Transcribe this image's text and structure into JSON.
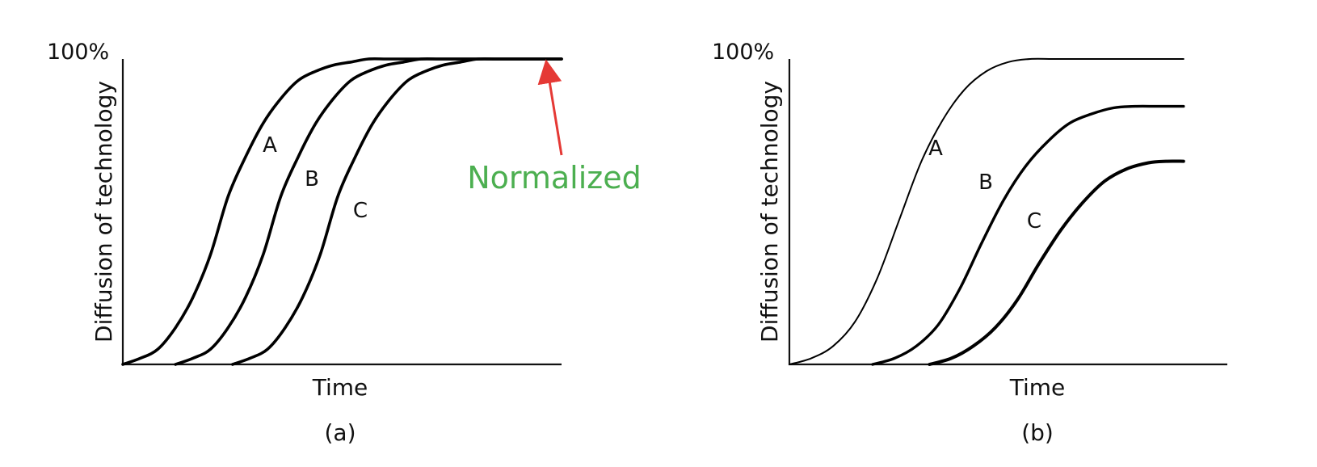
{
  "colors": {
    "curve": "#000000",
    "annotation_text": "#4caf50",
    "annotation_arrow": "#e53935"
  },
  "chart_data": [
    {
      "type": "line",
      "panel_label": "(a)",
      "xlabel": "Time",
      "ylabel": "Diffusion of technology",
      "y_tick_label": "100%",
      "ylim": [
        0,
        100
      ],
      "x_ticks_shown": false,
      "grid": false,
      "annotation": {
        "text": "Normalized",
        "points_to": "common 100% plateau"
      },
      "series": [
        {
          "name": "A",
          "x": [
            0,
            4,
            8,
            12,
            16,
            20,
            24,
            28,
            32,
            36,
            40,
            44,
            48,
            52,
            56,
            60,
            64,
            68,
            72,
            76,
            80,
            84,
            88,
            92,
            96,
            100
          ],
          "y": [
            0,
            2,
            5,
            12,
            22,
            36,
            55,
            68,
            79,
            87,
            93,
            96,
            98,
            99,
            100,
            100,
            100,
            100,
            100,
            100,
            100,
            100,
            100,
            100,
            100,
            100
          ]
        },
        {
          "name": "B",
          "x": [
            12,
            16,
            20,
            24,
            28,
            32,
            36,
            40,
            44,
            48,
            52,
            56,
            60,
            64,
            68,
            72,
            76,
            80,
            84,
            88,
            92,
            96,
            100
          ],
          "y": [
            0,
            2,
            5,
            12,
            22,
            36,
            55,
            68,
            79,
            87,
            93,
            96,
            98,
            99,
            100,
            100,
            100,
            100,
            100,
            100,
            100,
            100,
            100
          ]
        },
        {
          "name": "C",
          "x": [
            25,
            29,
            33,
            37,
            41,
            45,
            49,
            53,
            57,
            61,
            65,
            69,
            73,
            77,
            81,
            85,
            89,
            93,
            97,
            100
          ],
          "y": [
            0,
            2,
            5,
            12,
            22,
            36,
            55,
            68,
            79,
            87,
            93,
            96,
            98,
            99,
            100,
            100,
            100,
            100,
            100,
            100
          ]
        }
      ]
    },
    {
      "type": "line",
      "panel_label": "(b)",
      "xlabel": "Time",
      "ylabel": "Diffusion of technology",
      "y_tick_label": "100%",
      "ylim": [
        0,
        100
      ],
      "x_ticks_shown": false,
      "grid": false,
      "series": [
        {
          "name": "A",
          "x": [
            0,
            5,
            10,
            15,
            20,
            25,
            30,
            35,
            40,
            45,
            50,
            55,
            60,
            65,
            70,
            80,
            90
          ],
          "y": [
            0,
            2,
            6,
            14,
            28,
            47,
            66,
            80,
            90,
            96,
            99,
            100,
            100,
            100,
            100,
            100,
            100
          ]
        },
        {
          "name": "B",
          "x": [
            19,
            24,
            29,
            34,
            39,
            44,
            49,
            54,
            59,
            64,
            69,
            74,
            79,
            84,
            90
          ],
          "y": [
            0,
            2,
            6,
            13,
            25,
            40,
            54,
            65,
            73,
            79,
            82,
            84,
            84.5,
            84.5,
            84.5
          ]
        },
        {
          "name": "C",
          "x": [
            32,
            37,
            42,
            47,
            52,
            57,
            62,
            67,
            72,
            77,
            82,
            86,
            90
          ],
          "y": [
            0,
            2,
            6,
            12,
            21,
            33,
            44,
            53,
            60,
            64,
            66,
            66.5,
            66.5
          ]
        }
      ]
    }
  ]
}
